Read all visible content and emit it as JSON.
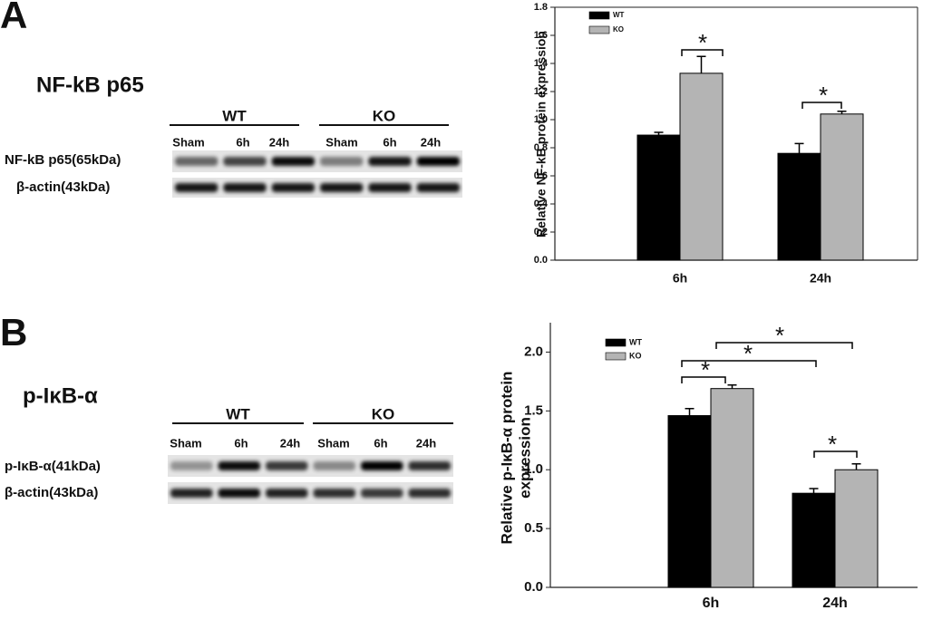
{
  "panels": [
    {
      "letter": "A",
      "title": "NF-kB p65",
      "groups": [
        "WT",
        "KO"
      ],
      "lanes": [
        "Sham",
        "6h",
        "24h",
        "Sham",
        "6h",
        "24h"
      ],
      "rows": [
        "NF-kB p65(65kDa)",
        "β-actin(43kDa)"
      ]
    },
    {
      "letter": "B",
      "title": "p-IκB-α",
      "groups": [
        "WT",
        "KO"
      ],
      "lanes": [
        "Sham",
        "6h",
        "24h",
        "Sham",
        "6h",
        "24h"
      ],
      "rows": [
        "p-IκB-α(41kDa)",
        "β-actin(43kDa)"
      ]
    }
  ],
  "chart_data": [
    {
      "type": "bar",
      "ylabel": [
        "Relative NF-kB protein expression"
      ],
      "categories": [
        "6h",
        "24h"
      ],
      "series": [
        {
          "name": "WT",
          "color": "#000000",
          "values": [
            0.89,
            0.76
          ],
          "errors": [
            0.02,
            0.07
          ]
        },
        {
          "name": "KO",
          "color": "#b4b4b4",
          "values": [
            1.33,
            1.04
          ],
          "errors": [
            0.12,
            0.02
          ]
        }
      ],
      "ylim": [
        0,
        1.8
      ],
      "yticks": [
        {
          "value": 0,
          "label": "0.0"
        },
        0.2,
        0.4,
        0.6,
        0.8,
        {
          "value": 1,
          "label": "1.0"
        },
        1.2,
        1.4,
        1.6,
        1.8
      ],
      "annotations": [
        "*",
        "*"
      ],
      "legend": "upper left"
    },
    {
      "type": "bar",
      "ylabel": [
        "Relative p-IκB-α protein",
        "expression"
      ],
      "categories": [
        "6h",
        "24h"
      ],
      "series": [
        {
          "name": "WT",
          "color": "#000000",
          "values": [
            1.46,
            0.8
          ],
          "errors": [
            0.06,
            0.04
          ]
        },
        {
          "name": "KO",
          "color": "#b4b4b4",
          "values": [
            1.69,
            1.0
          ],
          "errors": [
            0.03,
            0.05
          ]
        }
      ],
      "ylim": [
        0,
        2.25
      ],
      "yticks": [
        {
          "value": 0,
          "label": "0.0"
        },
        0.5,
        {
          "value": 1,
          "label": "1.0"
        },
        1.5,
        {
          "value": 2,
          "label": "2.0"
        }
      ],
      "annotations": [
        "*",
        "*",
        "*",
        "*"
      ],
      "legend": "upper left"
    }
  ]
}
